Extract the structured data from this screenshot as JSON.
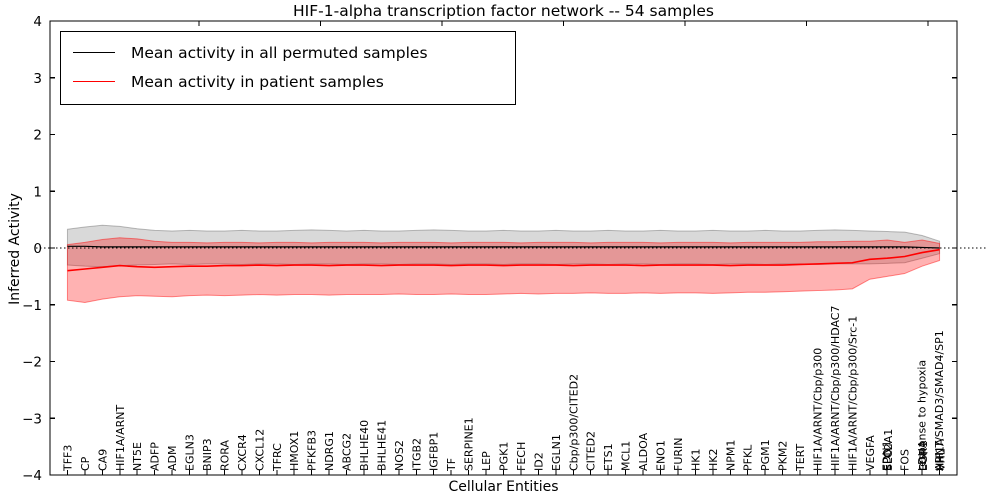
{
  "chart_data": {
    "type": "line",
    "title": "HIF-1-alpha transcription factor network -- 54 samples",
    "xlabel": "Cellular Entities",
    "ylabel": "Inferred Activity",
    "ylim": [
      -4,
      4
    ],
    "yticks": [
      4,
      3,
      2,
      1,
      0,
      -1,
      -2,
      -3,
      -4
    ],
    "legend_position": "upper left",
    "grid": false,
    "zero_line": {
      "style": "dash-dot",
      "color": "#000000",
      "y": 0
    },
    "entities": [
      "TFF3",
      "CP",
      "CA9",
      "HIF1A/ARNT",
      "NT5E",
      "ADFP",
      "ADM",
      "EGLN3",
      "BNIP3",
      "RORA",
      "CXCR4",
      "CXCL12",
      "TFRC",
      "HMOX1",
      "PFKFB3",
      "NDRG1",
      "ABCG2",
      "BHLHE40",
      "BHLHE41",
      "NOS2",
      "ITGB2",
      "IGFBP1",
      "TF",
      "SERPINE1",
      "LEP",
      "PGK1",
      "FECH",
      "ID2",
      "EGLN1",
      "Cbp/p300/CITED2",
      "CITED2",
      "ETS1",
      "MCL1",
      "ALDOA",
      "ENO1",
      "FURIN",
      "HK1",
      "HK2",
      "NPM1",
      "PFKL",
      "PGM1",
      "PKM2",
      "TERT",
      "HIF1A/ARNT/Cbp/p300",
      "HIF1A/ARNT/Cbp/p300/HDAC7",
      "HIF1A/ARNT/Cbp/p300/Src-1",
      "VEGFA",
      [
        "EPO",
        "SLC2A1",
        "EDN1"
      ],
      "FOS",
      [
        "LDHA",
        "EGR1",
        "response to hypoxia"
      ],
      [
        "HIF1A",
        "VHL",
        "ARNT/SMAD3/SMAD4/SP1"
      ]
    ],
    "series": [
      {
        "name": "Mean activity in all permuted samples",
        "color": "#000000",
        "band_fill": "rgba(0,0,0,0.15)",
        "band_edge": "rgba(0,0,0,0.25)",
        "values": [
          0.03,
          0.03,
          0.02,
          0.02,
          0.02,
          0.02,
          0.02,
          0.02,
          0.02,
          0.02,
          0.02,
          0.02,
          0.02,
          0.02,
          0.02,
          0.02,
          0.02,
          0.02,
          0.02,
          0.02,
          0.02,
          0.02,
          0.02,
          0.02,
          0.02,
          0.02,
          0.02,
          0.02,
          0.02,
          0.02,
          0.02,
          0.02,
          0.02,
          0.02,
          0.02,
          0.02,
          0.02,
          0.02,
          0.02,
          0.02,
          0.02,
          0.02,
          0.02,
          0.02,
          0.02,
          0.02,
          0.02,
          0.02,
          0.02,
          0.01,
          0.0
        ],
        "upper": [
          0.33,
          0.37,
          0.4,
          0.38,
          0.34,
          0.31,
          0.3,
          0.31,
          0.3,
          0.3,
          0.31,
          0.3,
          0.3,
          0.31,
          0.32,
          0.31,
          0.3,
          0.31,
          0.3,
          0.3,
          0.31,
          0.32,
          0.31,
          0.3,
          0.3,
          0.31,
          0.3,
          0.3,
          0.31,
          0.3,
          0.3,
          0.31,
          0.3,
          0.3,
          0.31,
          0.3,
          0.3,
          0.31,
          0.3,
          0.3,
          0.31,
          0.3,
          0.3,
          0.31,
          0.32,
          0.31,
          0.3,
          0.29,
          0.28,
          0.22,
          0.12
        ],
        "lower": [
          -0.3,
          -0.32,
          -0.33,
          -0.31,
          -0.3,
          -0.29,
          -0.28,
          -0.29,
          -0.28,
          -0.28,
          -0.29,
          -0.28,
          -0.28,
          -0.29,
          -0.28,
          -0.28,
          -0.29,
          -0.28,
          -0.28,
          -0.29,
          -0.28,
          -0.28,
          -0.29,
          -0.28,
          -0.28,
          -0.29,
          -0.28,
          -0.28,
          -0.29,
          -0.28,
          -0.28,
          -0.29,
          -0.28,
          -0.28,
          -0.29,
          -0.28,
          -0.28,
          -0.29,
          -0.28,
          -0.28,
          -0.29,
          -0.28,
          -0.28,
          -0.29,
          -0.28,
          -0.28,
          -0.28,
          -0.27,
          -0.26,
          -0.18,
          -0.1
        ]
      },
      {
        "name": "Mean activity in patient samples",
        "color": "#ff0000",
        "band_fill": "rgba(255,0,0,0.30)",
        "band_edge": "rgba(255,0,0,0.45)",
        "values": [
          -0.4,
          -0.37,
          -0.34,
          -0.31,
          -0.33,
          -0.34,
          -0.33,
          -0.32,
          -0.32,
          -0.31,
          -0.31,
          -0.3,
          -0.31,
          -0.3,
          -0.3,
          -0.31,
          -0.3,
          -0.3,
          -0.31,
          -0.3,
          -0.3,
          -0.3,
          -0.31,
          -0.3,
          -0.3,
          -0.31,
          -0.3,
          -0.3,
          -0.3,
          -0.31,
          -0.3,
          -0.3,
          -0.3,
          -0.31,
          -0.3,
          -0.3,
          -0.3,
          -0.3,
          -0.31,
          -0.3,
          -0.3,
          -0.3,
          -0.29,
          -0.28,
          -0.27,
          -0.26,
          -0.2,
          -0.18,
          -0.15,
          -0.08,
          -0.03
        ],
        "upper": [
          0.06,
          0.1,
          0.15,
          0.18,
          0.16,
          0.12,
          0.1,
          0.1,
          0.09,
          0.1,
          0.1,
          0.09,
          0.1,
          0.1,
          0.09,
          0.1,
          0.1,
          0.1,
          0.09,
          0.1,
          0.1,
          0.1,
          0.09,
          0.1,
          0.1,
          0.1,
          0.09,
          0.1,
          0.1,
          0.1,
          0.09,
          0.1,
          0.1,
          0.1,
          0.09,
          0.1,
          0.1,
          0.1,
          0.09,
          0.1,
          0.1,
          0.1,
          0.1,
          0.11,
          0.11,
          0.12,
          0.12,
          0.14,
          0.1,
          0.14,
          0.08
        ],
        "lower": [
          -0.92,
          -0.96,
          -0.9,
          -0.86,
          -0.84,
          -0.85,
          -0.86,
          -0.84,
          -0.83,
          -0.84,
          -0.83,
          -0.82,
          -0.83,
          -0.82,
          -0.82,
          -0.83,
          -0.82,
          -0.82,
          -0.82,
          -0.81,
          -0.82,
          -0.82,
          -0.81,
          -0.82,
          -0.82,
          -0.81,
          -0.8,
          -0.81,
          -0.8,
          -0.8,
          -0.79,
          -0.8,
          -0.8,
          -0.79,
          -0.8,
          -0.79,
          -0.79,
          -0.8,
          -0.79,
          -0.78,
          -0.78,
          -0.77,
          -0.76,
          -0.75,
          -0.74,
          -0.72,
          -0.55,
          -0.5,
          -0.45,
          -0.32,
          -0.22
        ]
      }
    ]
  }
}
